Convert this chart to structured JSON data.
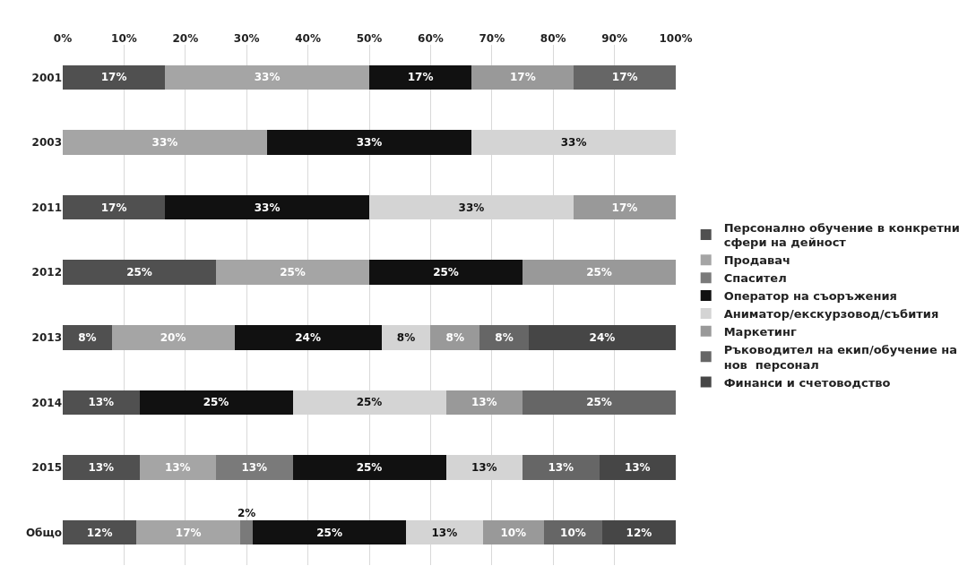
{
  "chart_data": {
    "type": "bar",
    "orientation": "horizontal",
    "stacked": true,
    "categories": [
      "2001",
      "2003",
      "2011",
      "2012",
      "2013",
      "2014",
      "2015",
      "Общо"
    ],
    "xlim": [
      0,
      100
    ],
    "xticks": [
      {
        "value": 0,
        "label": "0%"
      },
      {
        "value": 10,
        "label": "10%"
      },
      {
        "value": 20,
        "label": "20%"
      },
      {
        "value": 30,
        "label": "30%"
      },
      {
        "value": 40,
        "label": "40%"
      },
      {
        "value": 50,
        "label": "50%"
      },
      {
        "value": 60,
        "label": "60%"
      },
      {
        "value": 70,
        "label": "70%"
      },
      {
        "value": 80,
        "label": "80%"
      },
      {
        "value": 90,
        "label": "90%"
      },
      {
        "value": 100,
        "label": "100%"
      }
    ],
    "grid": "x",
    "legend": "right",
    "series": [
      {
        "name": "Персонално обучение в конкретни сфери на дейност",
        "color": "#505050",
        "values": [
          16.7,
          null,
          16.7,
          25,
          8,
          12.5,
          12.5,
          12
        ],
        "value_labels": [
          "17%",
          null,
          "17%",
          "25%",
          "8%",
          "13%",
          "13%",
          "12%"
        ]
      },
      {
        "name": "Продавач",
        "color": "#a5a5a5",
        "values": [
          33.3,
          33.3,
          null,
          25,
          20,
          null,
          12.5,
          17
        ],
        "value_labels": [
          "33%",
          "33%",
          null,
          "25%",
          "20%",
          null,
          "13%",
          "17%"
        ]
      },
      {
        "name": "Спасител",
        "color": "#7a7a7a",
        "values": [
          null,
          null,
          null,
          null,
          null,
          null,
          12.5,
          2
        ],
        "value_labels": [
          null,
          null,
          null,
          null,
          null,
          null,
          "13%",
          "2%"
        ]
      },
      {
        "name": "Оператор на съоръжения",
        "color": "#111111",
        "values": [
          16.7,
          33.4,
          33.3,
          25,
          24,
          25,
          25,
          25
        ],
        "value_labels": [
          "17%",
          "33%",
          "33%",
          "25%",
          "24%",
          "25%",
          "25%",
          "25%"
        ]
      },
      {
        "name": "Аниматор/екскурзовод/събития",
        "color": "#d4d4d4",
        "values": [
          null,
          33.3,
          33.3,
          null,
          8,
          25,
          12.5,
          12.5
        ],
        "value_labels": [
          null,
          "33%",
          "33%",
          null,
          "8%",
          "25%",
          "13%",
          "13%"
        ]
      },
      {
        "name": "Маркетинг",
        "color": "#999999",
        "values": [
          16.7,
          null,
          16.7,
          25,
          8,
          12.5,
          null,
          10
        ],
        "value_labels": [
          "17%",
          null,
          "17%",
          "25%",
          "8%",
          "13%",
          null,
          "10%"
        ]
      },
      {
        "name": "Ръководител на екип/обучение на нов  персонал",
        "color": "#666666",
        "values": [
          16.6,
          null,
          null,
          null,
          8,
          25,
          12.5,
          9.5
        ],
        "value_labels": [
          "17%",
          null,
          null,
          null,
          "8%",
          "25%",
          "13%",
          "10%"
        ]
      },
      {
        "name": "Финанси и счетоводство",
        "color": "#464646",
        "values": [
          null,
          null,
          null,
          null,
          24,
          null,
          12.5,
          12
        ],
        "value_labels": [
          null,
          null,
          null,
          null,
          "24%",
          null,
          "13%",
          "12%"
        ]
      }
    ]
  }
}
